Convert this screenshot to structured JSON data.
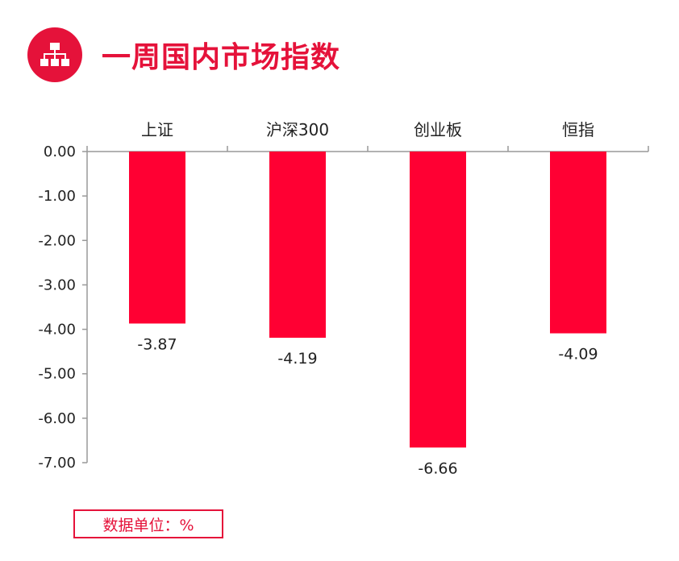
{
  "header": {
    "title": "一周国内市场指数",
    "icon": "sitemap-icon",
    "accent_color": "#e5123a"
  },
  "unit_label": "数据单位：%",
  "chart_data": {
    "type": "bar",
    "categories": [
      "上证",
      "沪深300",
      "创业板",
      "恒指"
    ],
    "values": [
      -3.87,
      -4.19,
      -6.66,
      -4.09
    ],
    "value_labels": [
      "-3.87",
      "-4.19",
      "-6.66",
      "-4.09"
    ],
    "ylim": [
      -7.0,
      0.0
    ],
    "y_ticks": [
      "0.00",
      "-1.00",
      "-2.00",
      "-3.00",
      "-4.00",
      "-5.00",
      "-6.00",
      "-7.00"
    ],
    "bar_color": "#ff0033",
    "x_axis_position": "top",
    "grid": false
  }
}
